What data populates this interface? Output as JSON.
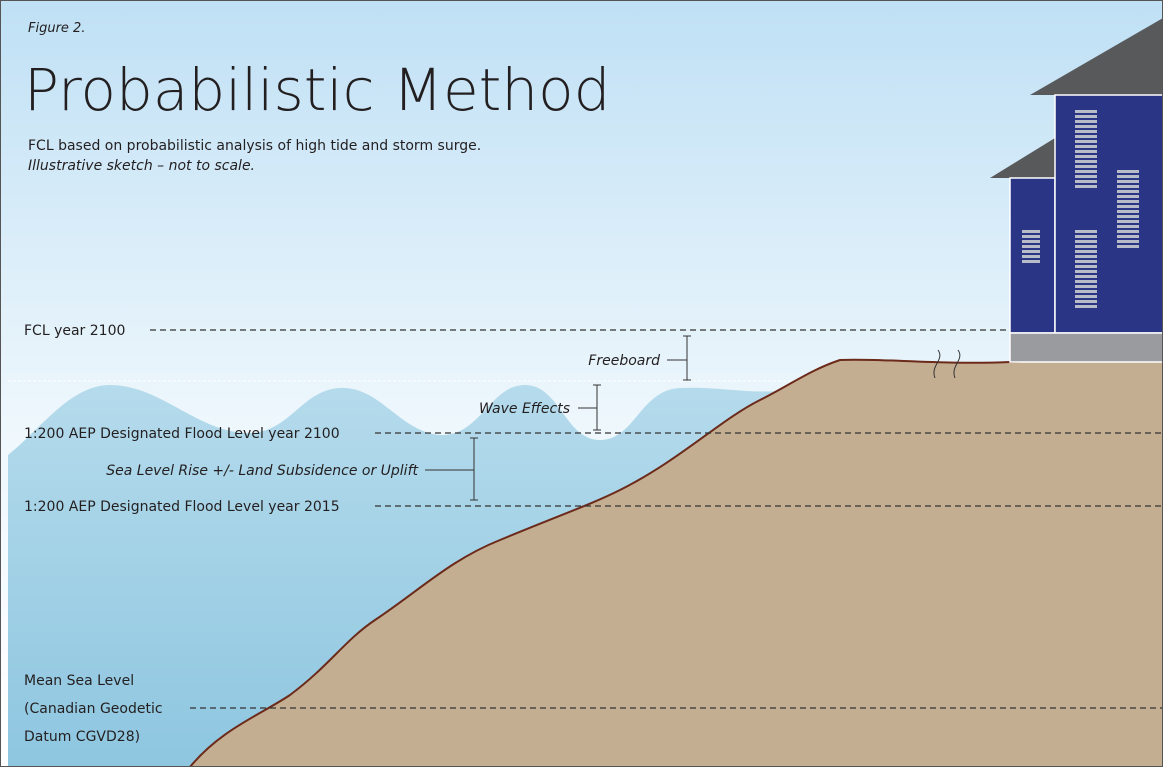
{
  "header": {
    "figure": "Figure 2.",
    "title": "Probabilistic Method",
    "subtitle": "FCL based on probabilistic analysis of high tide and storm surge.",
    "note": "Illustrative sketch – not to scale."
  },
  "levels": [
    "FCL year 2100",
    "1:200 AEP Designated Flood Level year 2100",
    "1:200 AEP Designated Flood Level year 2015"
  ],
  "mean_sea_level": [
    "Mean Sea Level",
    "(Canadian Geodetic",
    "Datum CGVD28)"
  ],
  "annotations": [
    "Freeboard",
    "Wave Effects",
    "Sea Level Rise +/- Land Subsidence or Uplift"
  ]
}
